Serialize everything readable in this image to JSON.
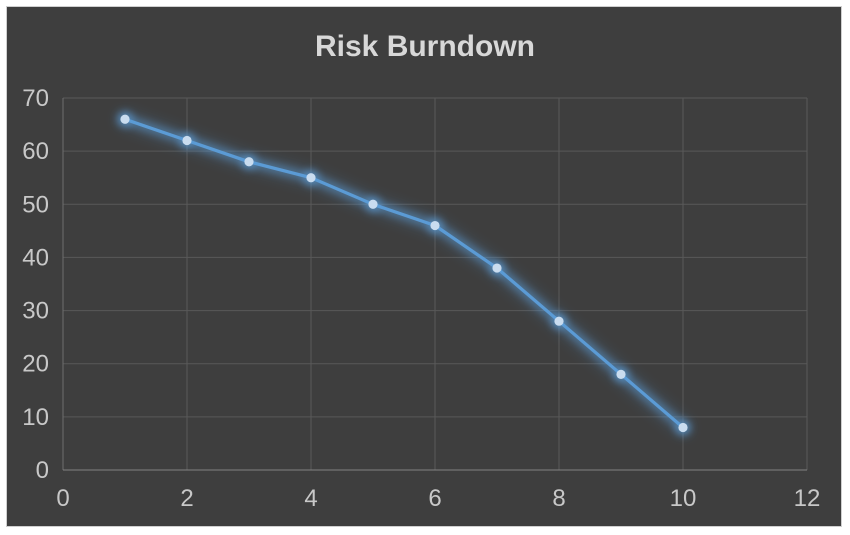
{
  "chart_data": {
    "type": "line",
    "title": "Risk Burndown",
    "x": [
      1,
      2,
      3,
      4,
      5,
      6,
      7,
      8,
      9,
      10
    ],
    "values": [
      66,
      62,
      58,
      55,
      50,
      46,
      38,
      28,
      18,
      8
    ],
    "xlabel": "",
    "ylabel": "",
    "xlim": [
      0,
      12
    ],
    "ylim": [
      0,
      70
    ],
    "x_ticks": [
      0,
      2,
      4,
      6,
      8,
      10,
      12
    ],
    "y_ticks": [
      0,
      10,
      20,
      30,
      40,
      50,
      60,
      70
    ],
    "grid": true,
    "legend": false,
    "marker": "circle",
    "line_effect": "outer-glow"
  },
  "style": {
    "page_background": "#ffffff",
    "frame_border": "#cfcfcf",
    "chart_background": "#3e3e3e",
    "gridline_color": "#595959",
    "axis_line_color": "#828282",
    "left_axis_color": "#6e6e6e",
    "tick_label_color": "#c8c8c8",
    "title_color": "#d8d8d8",
    "series_line_color": "#5b9bd5",
    "marker_fill_color": "#c9dcef",
    "glow_color": "#5b9bd5"
  }
}
